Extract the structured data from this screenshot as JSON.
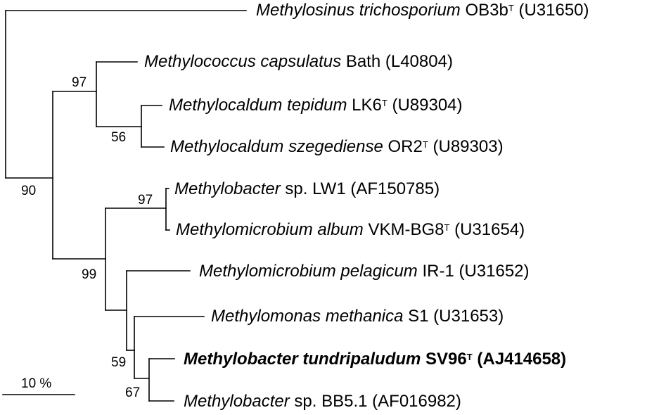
{
  "taxa": [
    {
      "genus": "Methylosinus trichosporium",
      "strain": "OB3b",
      "type": "T",
      "acc": "(U31650)",
      "bold": false
    },
    {
      "genus": "Methylococcus capsulatus",
      "strain": "Bath",
      "type": "",
      "acc": "(L40804)",
      "bold": false
    },
    {
      "genus": "Methylocaldum tepidum",
      "strain": "LK6",
      "type": "T",
      "acc": "(U89304)",
      "bold": false
    },
    {
      "genus": "Methylocaldum szegediense",
      "strain": "OR2",
      "type": "T",
      "acc": "(U89303)",
      "bold": false
    },
    {
      "genus": "Methylobacter",
      "strain": "sp. LW1",
      "type": "",
      "acc": "(AF150785)",
      "bold": false
    },
    {
      "genus": "Methylomicrobium album",
      "strain": "VKM-BG8",
      "type": "T",
      "acc": "(U31654)",
      "bold": false
    },
    {
      "genus": "Methylomicrobium pelagicum",
      "strain": "IR-1",
      "type": "",
      "acc": "(U31652)",
      "bold": false
    },
    {
      "genus": "Methylomonas methanica",
      "strain": "S1",
      "type": "",
      "acc": "(U31653)",
      "bold": false
    },
    {
      "genus": "Methylobacter tundripaludum",
      "strain": "SV96",
      "type": "T",
      "acc": "(AJ414658)",
      "bold": true
    },
    {
      "genus": "Methylobacter",
      "strain": "sp. BB5.1",
      "type": "",
      "acc": "(AF016982)",
      "bold": false
    }
  ],
  "bootstrap": {
    "b97a": "97",
    "b56": "56",
    "b90": "90",
    "b97b": "97",
    "b99": "99",
    "b59": "59",
    "b67": "67"
  },
  "scale": {
    "label": "10 %"
  }
}
